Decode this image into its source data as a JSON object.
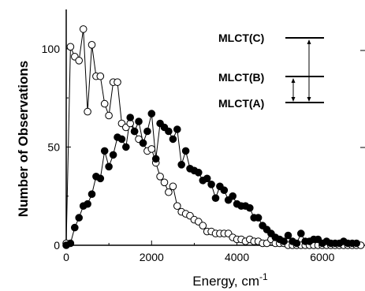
{
  "chart_data": {
    "type": "scatter",
    "xlabel": "Energy, cm",
    "xlabel_superscript": "-1",
    "ylabel": "Number of Observations",
    "xlim": [
      0,
      7000
    ],
    "ylim": [
      0,
      120
    ],
    "x_ticks": [
      0,
      2000,
      4000,
      6000
    ],
    "y_ticks": [
      0,
      50,
      100
    ],
    "grid": false,
    "series": [
      {
        "marker": "open-circle",
        "x": [
          0,
          100,
          200,
          300,
          400,
          500,
          600,
          700,
          800,
          900,
          1000,
          1100,
          1200,
          1300,
          1400,
          1500,
          1600,
          1700,
          1800,
          1900,
          2000,
          2100,
          2200,
          2300,
          2400,
          2500,
          2600,
          2700,
          2800,
          2900,
          3000,
          3100,
          3200,
          3300,
          3400,
          3500,
          3600,
          3700,
          3800,
          3900,
          4000,
          4100,
          4200,
          4300,
          4400,
          4500,
          4600,
          4700,
          4800,
          4900,
          5000,
          5100,
          5200,
          5300,
          5400,
          5500,
          5600,
          5700,
          5800,
          5900,
          6000,
          6100,
          6200,
          6300,
          6400,
          6500,
          6600,
          6700,
          6800,
          6900
        ],
        "y": [
          1,
          101,
          96,
          94,
          110,
          68,
          102,
          86,
          86,
          72,
          66,
          83,
          83,
          62,
          60,
          62,
          58,
          54,
          52,
          48,
          49,
          42,
          35,
          32,
          27,
          30,
          20,
          17,
          16,
          15,
          13,
          12,
          10,
          7,
          7,
          6,
          6,
          6,
          6,
          4,
          3,
          3,
          2,
          3,
          2,
          2,
          1,
          1,
          3,
          1,
          1,
          1,
          0,
          0,
          0,
          0,
          0,
          0,
          0,
          0,
          0,
          0,
          0,
          0,
          0,
          0,
          0,
          0,
          0,
          0
        ]
      },
      {
        "marker": "filled-circle",
        "x": [
          0,
          100,
          200,
          300,
          400,
          500,
          600,
          700,
          800,
          900,
          1000,
          1100,
          1200,
          1300,
          1400,
          1500,
          1600,
          1700,
          1800,
          1900,
          2000,
          2100,
          2200,
          2300,
          2400,
          2500,
          2600,
          2700,
          2800,
          2900,
          3000,
          3100,
          3200,
          3300,
          3400,
          3500,
          3600,
          3700,
          3800,
          3900,
          4000,
          4100,
          4200,
          4300,
          4400,
          4500,
          4600,
          4700,
          4800,
          4900,
          5000,
          5100,
          5200,
          5300,
          5400,
          5500,
          5600,
          5700,
          5800,
          5900,
          6000,
          6100,
          6200,
          6300,
          6400,
          6500,
          6600,
          6700,
          6800
        ],
        "y": [
          0,
          1,
          9,
          14,
          20,
          21,
          26,
          35,
          34,
          48,
          40,
          46,
          55,
          54,
          50,
          65,
          58,
          63,
          52,
          58,
          67,
          44,
          62,
          60,
          58,
          54,
          59,
          41,
          48,
          39,
          38,
          37,
          33,
          34,
          31,
          24,
          30,
          28,
          23,
          25,
          21,
          20,
          20,
          19,
          14,
          14,
          10,
          8,
          6,
          4,
          3,
          2,
          5,
          2,
          1,
          6,
          2,
          2,
          3,
          3,
          1,
          2,
          1,
          1,
          1,
          2,
          1,
          1,
          1
        ]
      }
    ],
    "inset": {
      "labels": [
        "MLCT(C)",
        "MLCT(B)",
        "MLCT(A)"
      ]
    }
  }
}
